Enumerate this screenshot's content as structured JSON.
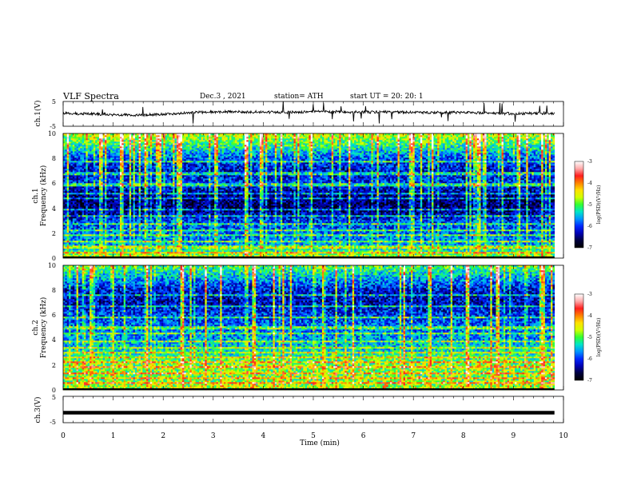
{
  "header": {
    "title": "VLF  Spectra",
    "date": "Dec.3  , 2021",
    "station": "station= ATH",
    "start_ut": "start  UT  =   20: 20: 1"
  },
  "colors": {
    "waveform": "#000000",
    "colormap": [
      "#000000",
      "#00003c",
      "#0000b4",
      "#0028ff",
      "#0096ff",
      "#00e6c8",
      "#32ff32",
      "#d2ff00",
      "#ffe100",
      "#ff8200",
      "#ff1e1e",
      "#ffaaaa",
      "#ffffff"
    ]
  },
  "chart_data": [
    {
      "type": "line",
      "panel": "ch1-waveform",
      "ylabel": "ch.1(V)",
      "ylim": [
        -5,
        5
      ],
      "yticks": [
        "5",
        "-5"
      ],
      "xlim": [
        0,
        10
      ],
      "xmax_data": 9.82,
      "x": [
        0.0,
        0.5,
        1.0,
        1.5,
        2.0,
        2.5,
        3.0,
        3.5,
        4.0,
        4.5,
        5.0,
        5.5,
        6.0,
        6.5,
        7.0,
        7.5,
        8.0,
        8.5,
        9.0,
        9.5,
        9.82
      ],
      "y": [
        0.2,
        0.0,
        -0.3,
        -0.5,
        -0.2,
        0.4,
        0.8,
        0.9,
        0.7,
        0.6,
        0.9,
        0.8,
        0.7,
        0.8,
        0.6,
        0.5,
        0.6,
        0.3,
        0.1,
        0.2,
        0.3
      ]
    },
    {
      "type": "heatmap",
      "panel": "ch1-spectrogram",
      "ylabel": "ch.1",
      "ylabel2": "Frequency  (kHz)",
      "ylim": [
        0,
        10
      ],
      "yticks": [
        "0",
        "2",
        "4",
        "6",
        "8",
        "10"
      ],
      "xlim": [
        0,
        10
      ],
      "xmax_data": 9.82,
      "z_profile_by_khz": [
        -4.6,
        -5.6,
        -5.8,
        -6.0,
        -6.6,
        -6.5,
        -6.0,
        -6.2,
        -5.9,
        -5.2,
        -4.6
      ],
      "lines_khz": [
        0.5,
        0.8,
        1.0,
        1.4,
        1.9,
        2.3,
        2.7,
        3.4,
        3.9,
        4.8,
        5.2,
        5.9,
        6.8,
        7.8
      ],
      "colorbar": {
        "label": "log(PSD)(V²/Hz)",
        "range": [
          -7,
          -3
        ],
        "ticks": [
          "-3",
          "-4",
          "-5",
          "-6",
          "-7"
        ]
      }
    },
    {
      "type": "heatmap",
      "panel": "ch2-spectrogram",
      "ylabel": "ch.2",
      "ylabel2": "Frequency  (kHz)",
      "ylim": [
        0,
        10
      ],
      "yticks": [
        "0",
        "2",
        "4",
        "6",
        "8",
        "10"
      ],
      "xlim": [
        0,
        10
      ],
      "xmax_data": 9.82,
      "z_profile_by_khz": [
        -4.7,
        -5.0,
        -4.9,
        -5.3,
        -5.6,
        -5.8,
        -6.0,
        -6.3,
        -6.2,
        -5.6,
        -5.0
      ],
      "lines_khz": [
        0.6,
        1.0,
        1.4,
        1.9,
        2.2,
        2.6,
        3.0,
        3.4,
        3.9,
        4.6,
        5.0,
        5.8,
        6.7,
        7.6
      ],
      "colorbar": {
        "label": "log(PSD)(V²/Hz)",
        "range": [
          -7,
          -3
        ],
        "ticks": [
          "-3",
          "-4",
          "-5",
          "-6",
          "-7"
        ]
      }
    },
    {
      "type": "line",
      "panel": "ch3-waveform",
      "ylabel": "ch.3(V)",
      "ylim": [
        -5,
        5
      ],
      "yticks": [
        "5",
        "-5"
      ],
      "xlim": [
        0,
        10
      ],
      "xmax_data": 9.82,
      "x": [
        0.0,
        9.82
      ],
      "y": [
        -1.2,
        -1.2
      ],
      "xlabel": "Time  (min)",
      "xticks": [
        "0",
        "1",
        "2",
        "3",
        "4",
        "5",
        "6",
        "7",
        "8",
        "9",
        "10"
      ]
    }
  ]
}
